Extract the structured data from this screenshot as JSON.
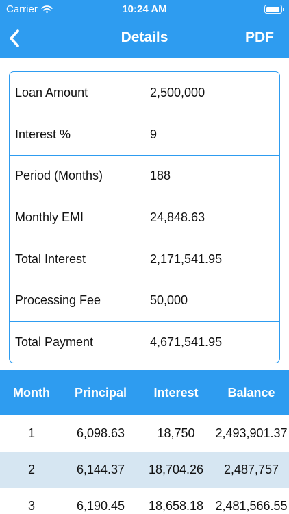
{
  "status_bar": {
    "carrier": "Carrier",
    "time": "10:24 AM"
  },
  "nav": {
    "title": "Details",
    "pdf_label": "PDF"
  },
  "summary": [
    {
      "label": "Loan Amount",
      "value": "2,500,000"
    },
    {
      "label": "Interest %",
      "value": "9"
    },
    {
      "label": "Period (Months)",
      "value": "188"
    },
    {
      "label": "Monthly EMI",
      "value": "24,848.63"
    },
    {
      "label": "Total Interest",
      "value": "2,171,541.95"
    },
    {
      "label": "Processing Fee",
      "value": "50,000"
    },
    {
      "label": "Total Payment",
      "value": "4,671,541.95"
    }
  ],
  "schedule": {
    "headers": [
      "Month",
      "Principal",
      "Interest",
      "Balance"
    ],
    "rows": [
      [
        "1",
        "6,098.63",
        "18,750",
        "2,493,901.37"
      ],
      [
        "2",
        "6,144.37",
        "18,704.26",
        "2,487,757"
      ],
      [
        "3",
        "6,190.45",
        "18,658.18",
        "2,481,566.55"
      ]
    ]
  },
  "colors": {
    "accent": "#2e9cf0",
    "alt_row": "#d6e6f2"
  }
}
